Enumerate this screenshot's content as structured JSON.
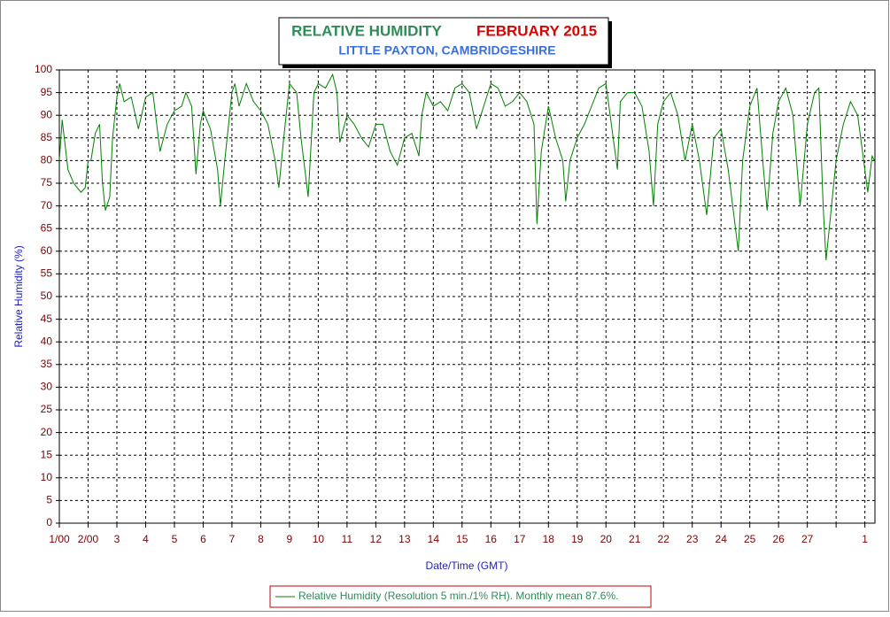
{
  "chart_data": {
    "type": "line",
    "title": "RELATIVE HUMIDITY",
    "title_period": "FEBRUARY 2015",
    "subtitle": "LITTLE PAXTON, CAMBRIDGESHIRE",
    "x_label": "Date/Time (GMT)",
    "y_label": "Relative Humidity (%)",
    "xlim": [
      0,
      28.35
    ],
    "ylim": [
      0,
      100
    ],
    "xticks": [
      {
        "value": 0,
        "label": "1/00"
      },
      {
        "value": 1,
        "label": "2/00"
      },
      {
        "value": 2,
        "label": "3"
      },
      {
        "value": 3,
        "label": "4"
      },
      {
        "value": 4,
        "label": "5"
      },
      {
        "value": 5,
        "label": "6"
      },
      {
        "value": 6,
        "label": "7"
      },
      {
        "value": 7,
        "label": "8"
      },
      {
        "value": 8,
        "label": "9"
      },
      {
        "value": 9,
        "label": "10"
      },
      {
        "value": 10,
        "label": "11"
      },
      {
        "value": 11,
        "label": "12"
      },
      {
        "value": 12,
        "label": "13"
      },
      {
        "value": 13,
        "label": "14"
      },
      {
        "value": 14,
        "label": "15"
      },
      {
        "value": 15,
        "label": "16"
      },
      {
        "value": 16,
        "label": "17"
      },
      {
        "value": 17,
        "label": "18"
      },
      {
        "value": 18,
        "label": "19"
      },
      {
        "value": 19,
        "label": "20"
      },
      {
        "value": 20,
        "label": "21"
      },
      {
        "value": 21,
        "label": "22"
      },
      {
        "value": 22,
        "label": "23"
      },
      {
        "value": 23,
        "label": "24"
      },
      {
        "value": 24,
        "label": "25"
      },
      {
        "value": 25,
        "label": "26"
      },
      {
        "value": 26,
        "label": "27"
      },
      {
        "value": 27,
        "label": null
      },
      {
        "value": 28,
        "label": "1"
      }
    ],
    "yticks": [
      0,
      5,
      10,
      15,
      20,
      25,
      30,
      35,
      40,
      45,
      50,
      55,
      60,
      65,
      70,
      75,
      80,
      85,
      90,
      95,
      100
    ],
    "grid": true,
    "x": [
      0,
      0.1,
      0.3,
      0.5,
      0.75,
      0.9,
      1.0,
      1.1,
      1.25,
      1.4,
      1.5,
      1.6,
      1.75,
      1.85,
      2.0,
      2.1,
      2.25,
      2.5,
      2.75,
      3.0,
      3.25,
      3.5,
      3.75,
      4.0,
      4.25,
      4.4,
      4.6,
      4.75,
      4.9,
      5.0,
      5.25,
      5.5,
      5.6,
      5.75,
      6.0,
      6.1,
      6.25,
      6.5,
      6.75,
      7.0,
      7.25,
      7.5,
      7.63,
      7.8,
      8.0,
      8.25,
      8.4,
      8.65,
      8.85,
      9.0,
      9.25,
      9.5,
      9.65,
      9.75,
      10.0,
      10.25,
      10.5,
      10.75,
      11.0,
      11.25,
      11.5,
      11.75,
      12.0,
      12.25,
      12.5,
      12.6,
      12.75,
      13.0,
      13.25,
      13.5,
      13.75,
      14.0,
      14.25,
      14.5,
      14.75,
      15.0,
      15.25,
      15.5,
      15.75,
      16.0,
      16.25,
      16.5,
      16.6,
      16.75,
      17.0,
      17.25,
      17.5,
      17.6,
      17.75,
      18.0,
      18.25,
      18.5,
      18.75,
      19.0,
      19.25,
      19.4,
      19.5,
      19.75,
      20.0,
      20.25,
      20.5,
      20.65,
      20.8,
      21.0,
      21.25,
      21.5,
      21.75,
      22.0,
      22.25,
      22.5,
      22.75,
      23.0,
      23.25,
      23.6,
      23.75,
      24.0,
      24.25,
      24.45,
      24.6,
      24.8,
      25.0,
      25.25,
      25.5,
      25.75,
      26.0,
      26.25,
      26.4,
      26.55,
      26.65,
      27.0,
      27.25,
      27.5,
      27.75,
      28.0,
      28.1,
      28.25,
      28.33
    ],
    "series": [
      {
        "name": "Relative Humidity (Resolution 5 min./1% RH). Monthly mean 87.6%.",
        "color": "#008000",
        "values": [
          80,
          89,
          78,
          75,
          73,
          74,
          80,
          80,
          86,
          88,
          75,
          69,
          72,
          85,
          94,
          97,
          93,
          94,
          87,
          94,
          95,
          82,
          88,
          91,
          92,
          95,
          92,
          77,
          88,
          91,
          87,
          78,
          70,
          80,
          95,
          97,
          92,
          97,
          93,
          91,
          88,
          80,
          74,
          85,
          97,
          95,
          85,
          72,
          95,
          97,
          96,
          99,
          95,
          84,
          90,
          88,
          85,
          83,
          88,
          88,
          82,
          79,
          85,
          86,
          81,
          90,
          95,
          92,
          93,
          91,
          96,
          97,
          95,
          87,
          92,
          97,
          96,
          92,
          93,
          95,
          93,
          88,
          66,
          82,
          92,
          85,
          80,
          71,
          80,
          85,
          88,
          92,
          96,
          97,
          85,
          78,
          93,
          95,
          95,
          92,
          82,
          70,
          88,
          93,
          95,
          90,
          80,
          88,
          80,
          68,
          85,
          87,
          78,
          60,
          80,
          92,
          96,
          80,
          69,
          86,
          93,
          96,
          90,
          70,
          88,
          95,
          96,
          70,
          58,
          80,
          88,
          93,
          90,
          78,
          73,
          81,
          80
        ]
      }
    ]
  }
}
